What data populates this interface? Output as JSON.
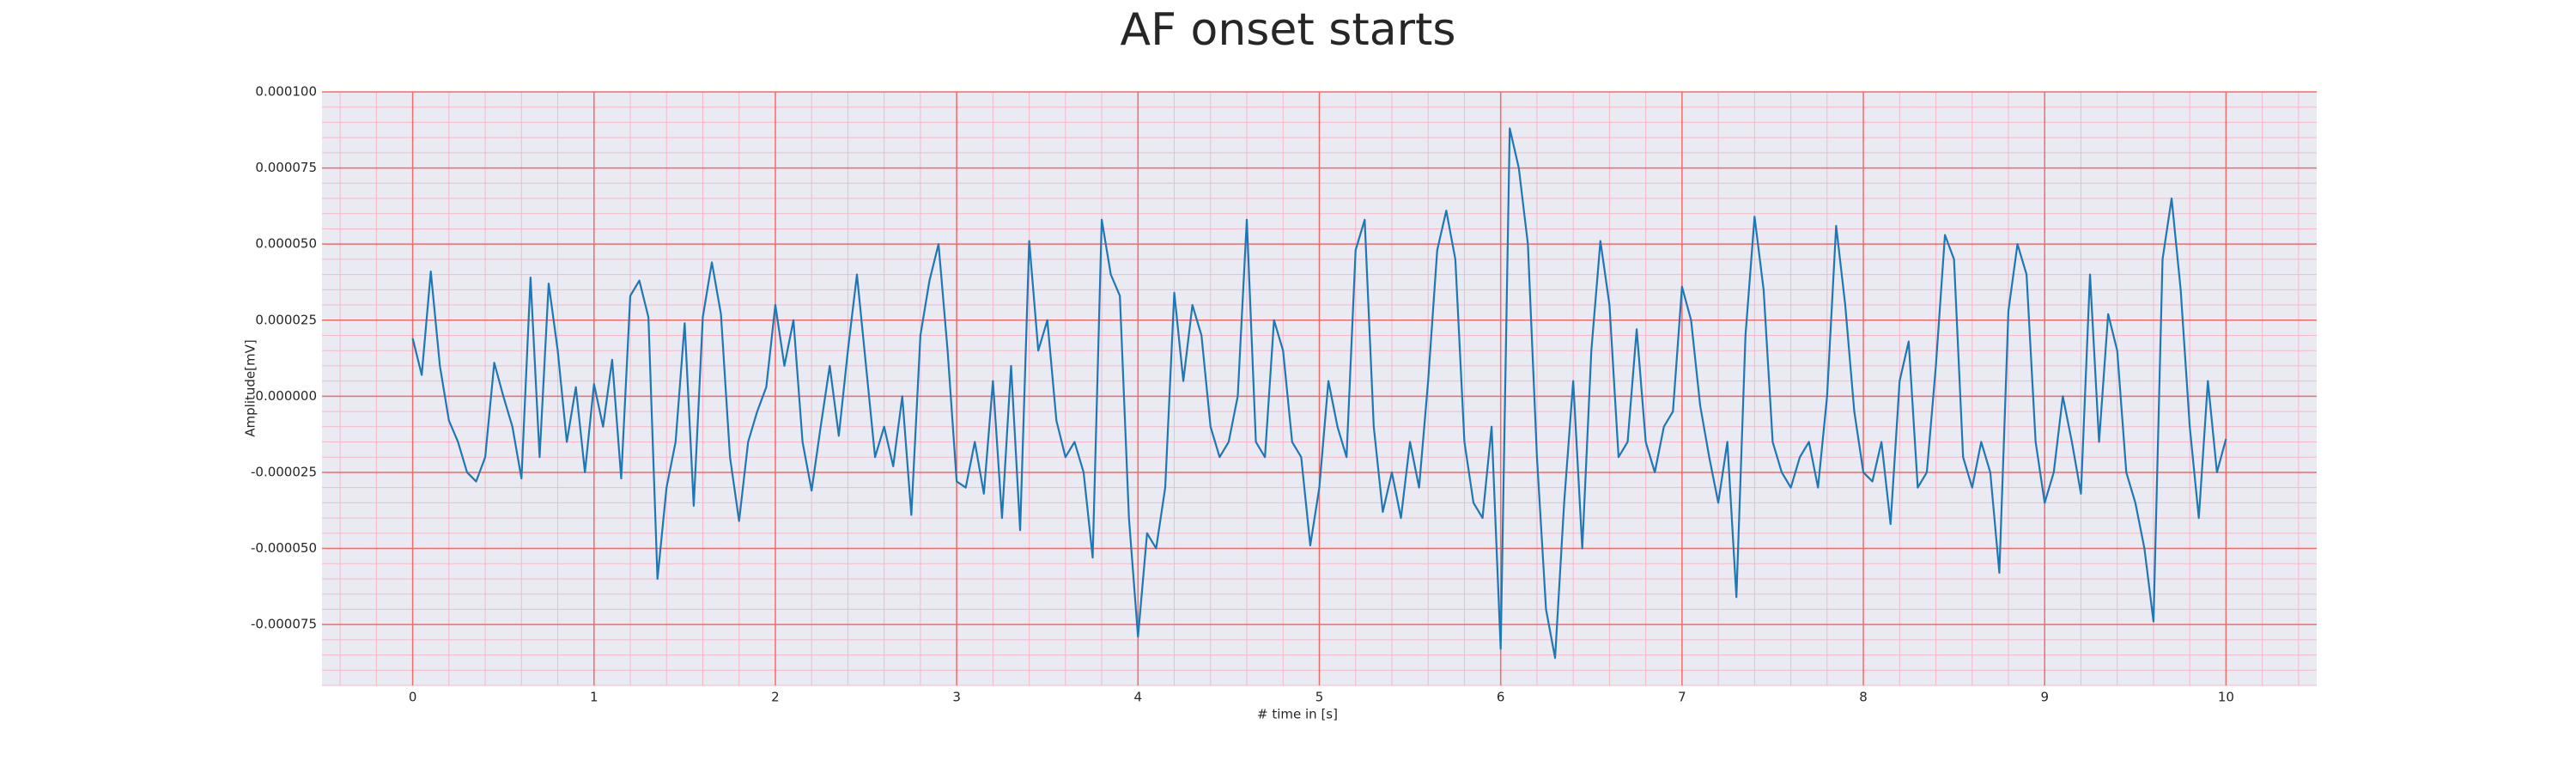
{
  "chart_data": {
    "type": "line",
    "title": "AF onset starts",
    "x_label": "# time in [s]",
    "y_label": "Amplitude[mV]",
    "color": "#1f77b4",
    "grid": true,
    "minor_grid": true,
    "xlim": [
      -0.5,
      10.5
    ],
    "xticks": [
      0,
      1,
      2,
      3,
      4,
      5,
      6,
      7,
      8,
      9,
      10
    ],
    "ylim": [
      -9.5e-05,
      0.0001
    ],
    "yticks": [
      {
        "value": -7.5e-05,
        "label": "-0.000075"
      },
      {
        "value": -5e-05,
        "label": "-0.000050"
      },
      {
        "value": -2.5e-05,
        "label": "-0.000025"
      },
      {
        "value": 0,
        "label": "0.000000"
      },
      {
        "value": 2.5e-05,
        "label": "0.000025"
      },
      {
        "value": 5e-05,
        "label": "0.000050"
      },
      {
        "value": 7.5e-05,
        "label": "0.000075"
      },
      {
        "value": 0.0001,
        "label": "0.000100"
      }
    ],
    "x": [
      0,
      0.05,
      0.1,
      0.15,
      0.2,
      0.25,
      0.3,
      0.35,
      0.4,
      0.45,
      0.5,
      0.55,
      0.6,
      0.65,
      0.7,
      0.75,
      0.8,
      0.85,
      0.9,
      0.95,
      1,
      1.05,
      1.1,
      1.15,
      1.2,
      1.25,
      1.3,
      1.35,
      1.4,
      1.45,
      1.5,
      1.55,
      1.6,
      1.65,
      1.7,
      1.75,
      1.8,
      1.85,
      1.9,
      1.95,
      2,
      2.05,
      2.1,
      2.15,
      2.2,
      2.25,
      2.3,
      2.35,
      2.4,
      2.45,
      2.5,
      2.55,
      2.6,
      2.65,
      2.7,
      2.75,
      2.8,
      2.85,
      2.9,
      2.95,
      3,
      3.05,
      3.1,
      3.15,
      3.2,
      3.25,
      3.3,
      3.35,
      3.4,
      3.45,
      3.5,
      3.55,
      3.6,
      3.65,
      3.7,
      3.75,
      3.8,
      3.85,
      3.9,
      3.95,
      4,
      4.05,
      4.1,
      4.15,
      4.2,
      4.25,
      4.3,
      4.35,
      4.4,
      4.45,
      4.5,
      4.55,
      4.6,
      4.65,
      4.7,
      4.75,
      4.8,
      4.85,
      4.9,
      4.95,
      5,
      5.05,
      5.1,
      5.15,
      5.2,
      5.25,
      5.3,
      5.35,
      5.4,
      5.45,
      5.5,
      5.55,
      5.6,
      5.65,
      5.7,
      5.75,
      5.8,
      5.85,
      5.9,
      5.95,
      6,
      6.05,
      6.1,
      6.15,
      6.2,
      6.25,
      6.3,
      6.35,
      6.4,
      6.45,
      6.5,
      6.55,
      6.6,
      6.65,
      6.7,
      6.75,
      6.8,
      6.85,
      6.9,
      6.95,
      7,
      7.05,
      7.1,
      7.15,
      7.2,
      7.25,
      7.3,
      7.35,
      7.4,
      7.45,
      7.5,
      7.55,
      7.6,
      7.65,
      7.7,
      7.75,
      7.8,
      7.85,
      7.9,
      7.95,
      8,
      8.05,
      8.1,
      8.15,
      8.2,
      8.25,
      8.3,
      8.35,
      8.4,
      8.45,
      8.5,
      8.55,
      8.6,
      8.65,
      8.7,
      8.75,
      8.8,
      8.85,
      8.9,
      8.95,
      9,
      9.05,
      9.1,
      9.15,
      9.2,
      9.25,
      9.3,
      9.35,
      9.4,
      9.45,
      9.5,
      9.55,
      9.6,
      9.65,
      9.7,
      9.75,
      9.8,
      9.85,
      9.9,
      9.95,
      10
    ],
    "values": [
      1.9e-05,
      7e-06,
      4.1e-05,
      1e-05,
      -8e-06,
      -1.5e-05,
      -2.5e-05,
      -2.8e-05,
      -2e-05,
      1.1e-05,
      0,
      -1e-05,
      -2.7e-05,
      3.9e-05,
      -2e-05,
      3.7e-05,
      1.5e-05,
      -1.5e-05,
      3e-06,
      -2.5e-05,
      4e-06,
      -1e-05,
      1.2e-05,
      -2.7e-05,
      3.3e-05,
      3.8e-05,
      2.6e-05,
      -6e-05,
      -3e-05,
      -1.5e-05,
      2.4e-05,
      -3.6e-05,
      2.6e-05,
      4.4e-05,
      2.7e-05,
      -2e-05,
      -4.1e-05,
      -1.5e-05,
      -5e-06,
      3e-06,
      3e-05,
      1e-05,
      2.5e-05,
      -1.5e-05,
      -3.1e-05,
      -1e-05,
      1e-05,
      -1.3e-05,
      1.5e-05,
      4e-05,
      1e-05,
      -2e-05,
      -1e-05,
      -2.3e-05,
      0,
      -3.9e-05,
      2e-05,
      3.8e-05,
      5e-05,
      1.5e-05,
      -2.8e-05,
      -3e-05,
      -1.5e-05,
      -3.2e-05,
      5e-06,
      -4e-05,
      1e-05,
      -4.4e-05,
      5.1e-05,
      1.5e-05,
      2.5e-05,
      -8e-06,
      -2e-05,
      -1.5e-05,
      -2.5e-05,
      -5.3e-05,
      5.8e-05,
      4e-05,
      3.3e-05,
      -4e-05,
      -7.9e-05,
      -4.5e-05,
      -5e-05,
      -3e-05,
      3.4e-05,
      5e-06,
      3e-05,
      2e-05,
      -1e-05,
      -2e-05,
      -1.5e-05,
      0,
      5.8e-05,
      -1.5e-05,
      -2e-05,
      2.5e-05,
      1.5e-05,
      -1.5e-05,
      -2e-05,
      -4.9e-05,
      -3e-05,
      5e-06,
      -1e-05,
      -2e-05,
      4.8e-05,
      5.8e-05,
      -1e-05,
      -3.8e-05,
      -2.5e-05,
      -4e-05,
      -1.5e-05,
      -3e-05,
      5e-06,
      4.8e-05,
      6.1e-05,
      4.5e-05,
      -1.5e-05,
      -3.5e-05,
      -4e-05,
      -1e-05,
      -8.3e-05,
      8.8e-05,
      7.5e-05,
      5e-05,
      -2e-05,
      -7e-05,
      -8.6e-05,
      -3.5e-05,
      5e-06,
      -5e-05,
      1.5e-05,
      5.1e-05,
      3e-05,
      -2e-05,
      -1.5e-05,
      2.2e-05,
      -1.5e-05,
      -2.5e-05,
      -1e-05,
      -5e-06,
      3.6e-05,
      2.5e-05,
      -3e-06,
      -2e-05,
      -3.5e-05,
      -1.5e-05,
      -6.6e-05,
      2e-05,
      5.9e-05,
      3.5e-05,
      -1.5e-05,
      -2.5e-05,
      -3e-05,
      -2e-05,
      -1.5e-05,
      -3e-05,
      0,
      5.6e-05,
      3e-05,
      -5e-06,
      -2.5e-05,
      -2.8e-05,
      -1.5e-05,
      -4.2e-05,
      5e-06,
      1.8e-05,
      -3e-05,
      -2.5e-05,
      1e-05,
      5.3e-05,
      4.5e-05,
      -2e-05,
      -3e-05,
      -1.5e-05,
      -2.5e-05,
      -5.8e-05,
      2.8e-05,
      5e-05,
      4e-05,
      -1.5e-05,
      -3.5e-05,
      -2.5e-05,
      0,
      -1.5e-05,
      -3.2e-05,
      4e-05,
      -1.5e-05,
      2.7e-05,
      1.5e-05,
      -2.5e-05,
      -3.5e-05,
      -5e-05,
      -7.4e-05,
      4.5e-05,
      6.5e-05,
      3.5e-05,
      -1e-05,
      -4e-05,
      5e-06,
      -2.5e-05,
      -1.4e-05
    ]
  }
}
